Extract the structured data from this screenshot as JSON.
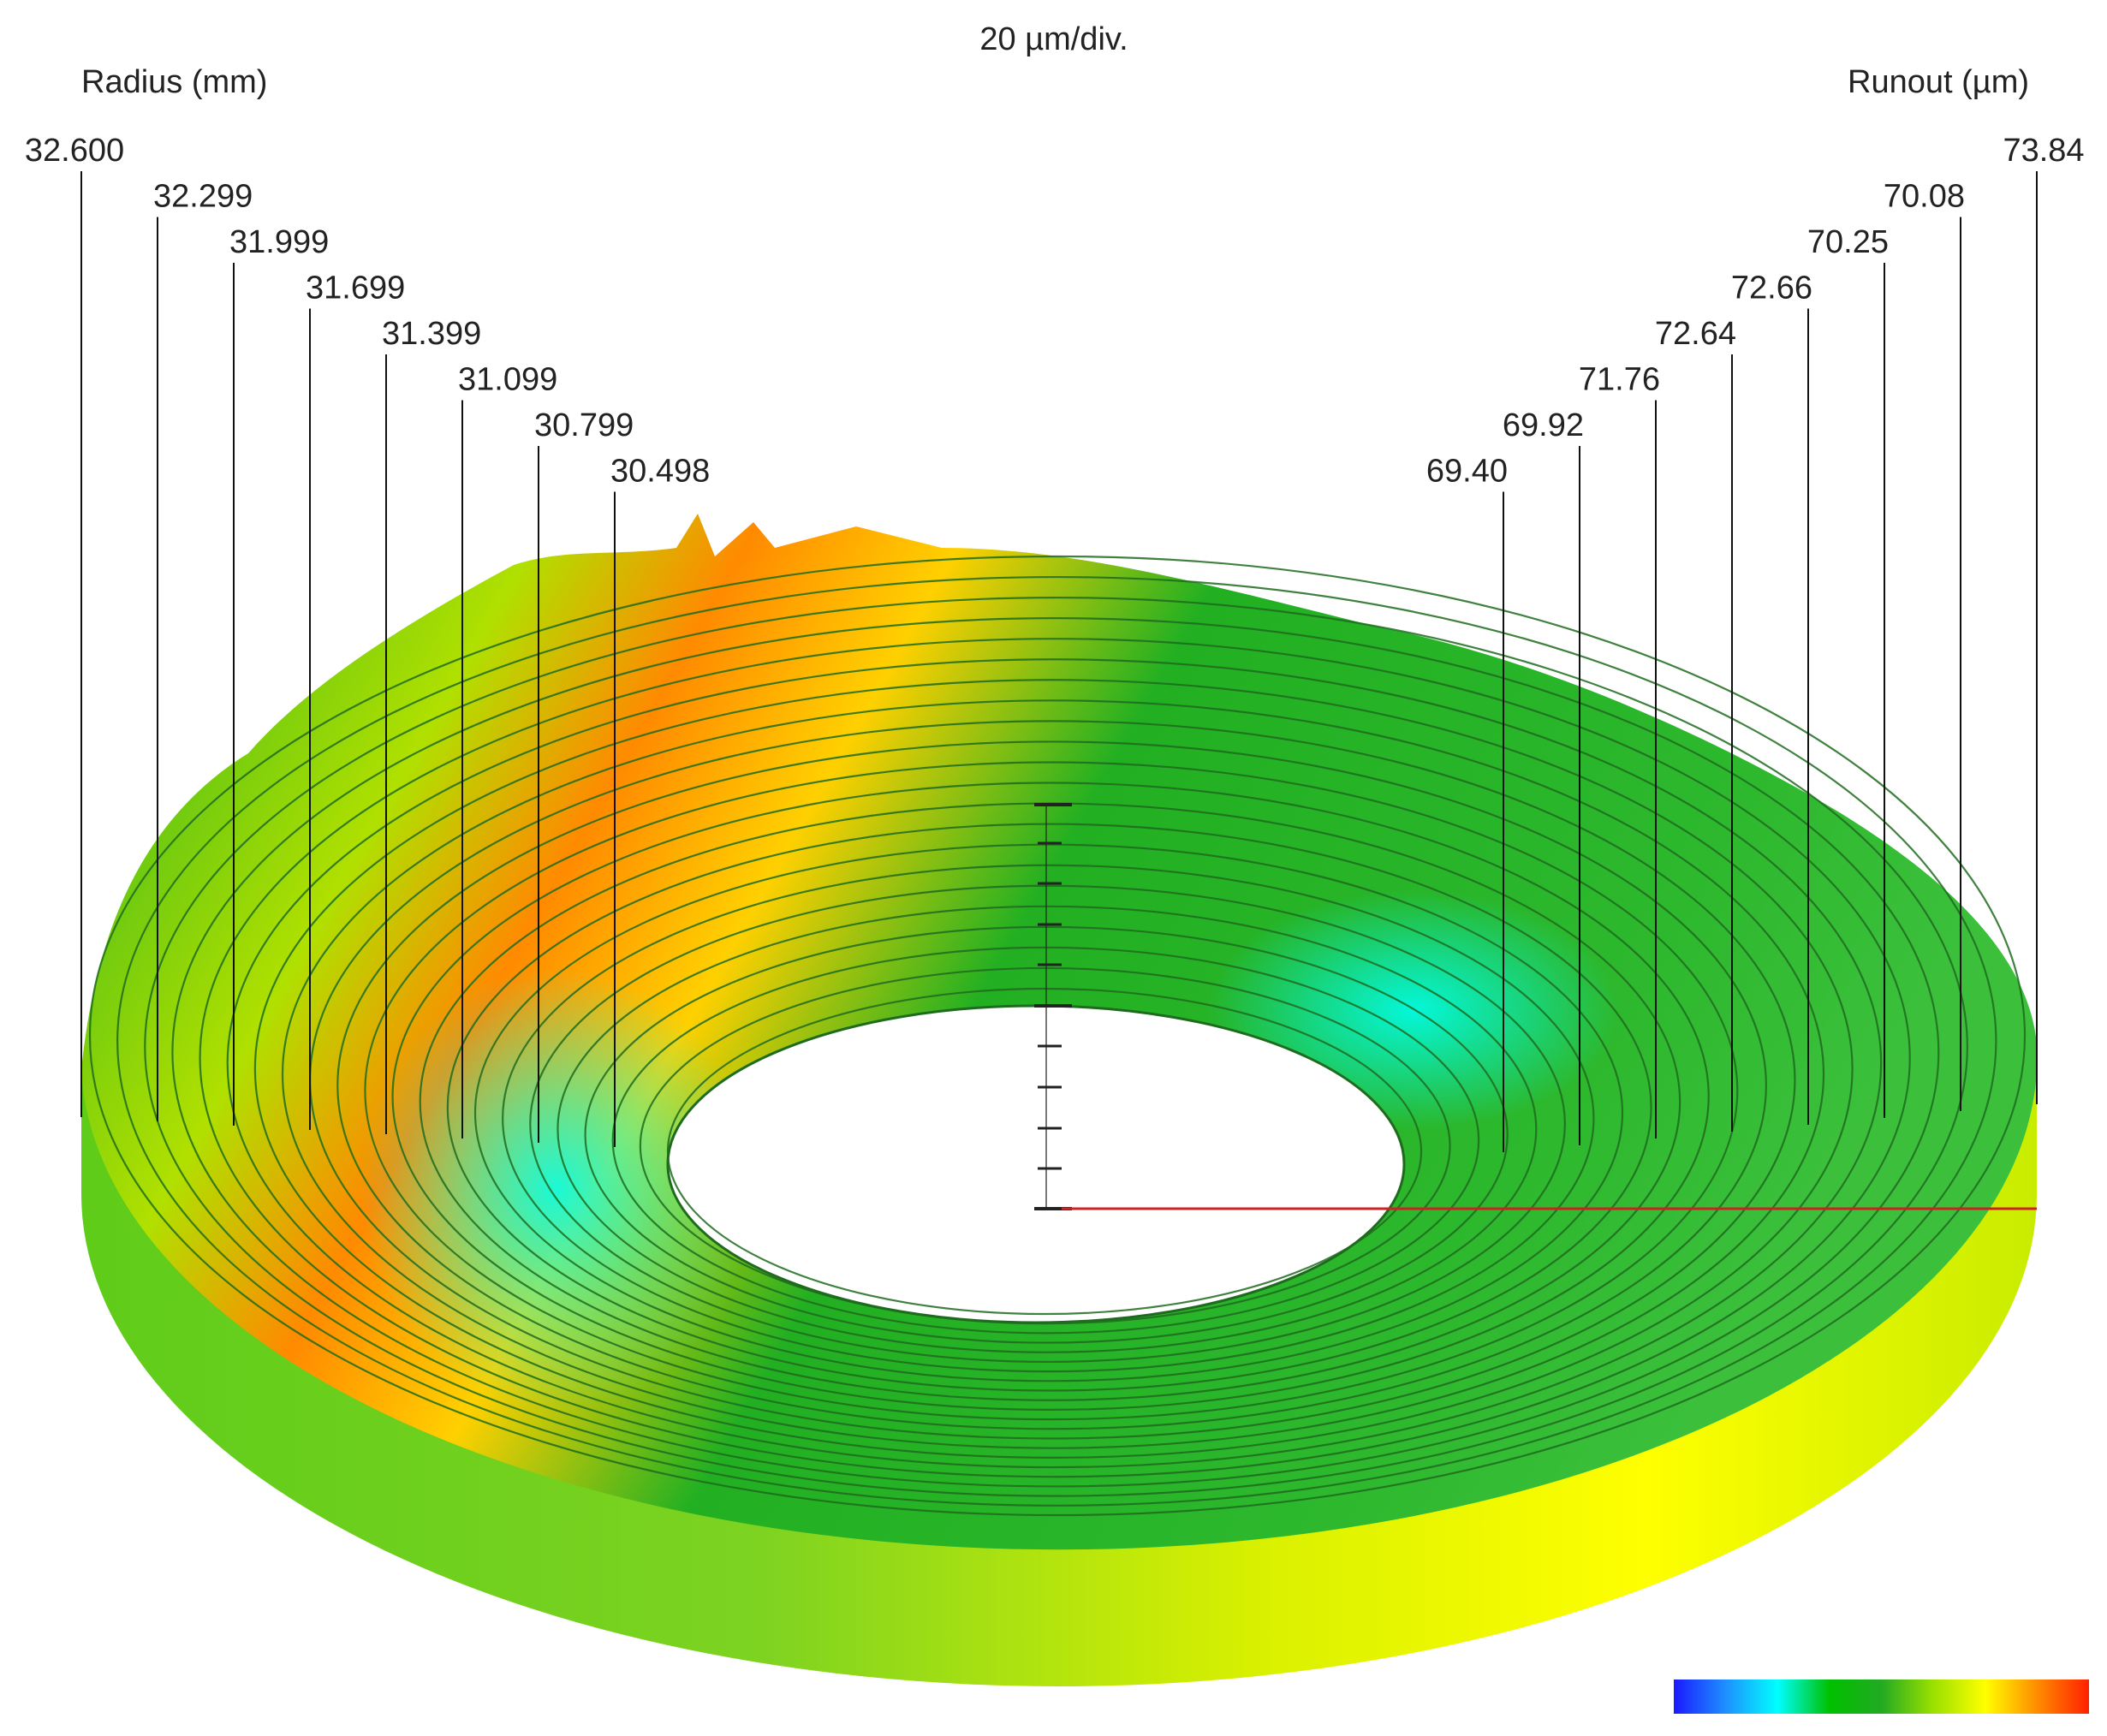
{
  "chart_data": {
    "type": "polar-runout-3d",
    "title": "20 µm/div.",
    "left_axis_label": "Radius (mm)",
    "right_axis_label": "Runout (µm)",
    "radius_labels": [
      "32.600",
      "32.299",
      "31.999",
      "31.699",
      "31.399",
      "31.099",
      "30.799",
      "30.498"
    ],
    "runout_labels": [
      "73.84",
      "70.08",
      "70.25",
      "72.66",
      "72.64",
      "71.76",
      "69.92",
      "69.40"
    ],
    "radius_mm": [
      32.6,
      32.299,
      31.999,
      31.699,
      31.399,
      31.099,
      30.799,
      30.498
    ],
    "runout_um": [
      73.84,
      70.08,
      70.25,
      72.66,
      72.64,
      71.76,
      69.92,
      69.4
    ],
    "vertical_scale_um_per_div": 20,
    "colorbar": {
      "stops": [
        "#1a1aff",
        "#1e90ff",
        "#00ffff",
        "#00c000",
        "#22aa22",
        "#9be000",
        "#ffff00",
        "#ff8c00",
        "#ff2000"
      ]
    },
    "colors": {
      "line": "#1e6b1e",
      "reference_line": "#cc2222",
      "leader": "#111111"
    }
  }
}
